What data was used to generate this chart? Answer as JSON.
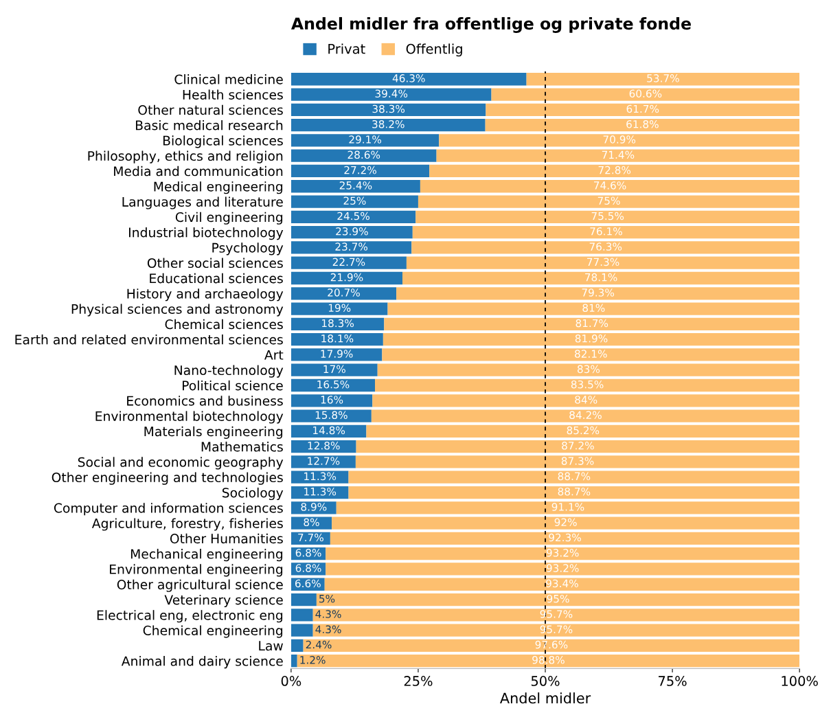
{
  "chart_data": {
    "type": "bar",
    "orientation": "horizontal",
    "stacked": true,
    "title": "Andel midler fra offentlige og private fonde",
    "xlabel": "Andel midler",
    "categories": [
      "Clinical medicine",
      "Health sciences",
      "Other natural sciences",
      "Basic medical research",
      "Biological sciences",
      "Philosophy, ethics and religion",
      "Media and communication",
      "Medical engineering",
      "Languages and literature",
      "Civil engineering",
      "Industrial biotechnology",
      "Psychology",
      "Other social sciences",
      "Educational sciences",
      "History and archaeology",
      "Physical sciences and astronomy",
      "Chemical sciences",
      "Earth and related environmental sciences",
      "Art",
      "Nano-technology",
      "Political science",
      "Economics and business",
      "Environmental biotechnology",
      "Materials engineering",
      "Mathematics",
      "Social and economic geography",
      "Other engineering and technologies",
      "Sociology",
      "Computer and information sciences",
      "Agriculture, forestry, fisheries",
      "Other Humanities",
      "Mechanical engineering",
      "Environmental engineering",
      "Other agricultural science",
      "Veterinary science",
      "Electrical eng, electronic eng",
      "Chemical engineering",
      "Law",
      "Animal and dairy science"
    ],
    "series": [
      {
        "name": "Privat",
        "color": "#2378b5",
        "values": [
          46.3,
          39.4,
          38.3,
          38.2,
          29.1,
          28.6,
          27.2,
          25.4,
          25,
          24.5,
          23.9,
          23.7,
          22.7,
          21.9,
          20.7,
          19,
          18.3,
          18.1,
          17.9,
          17,
          16.5,
          16,
          15.8,
          14.8,
          12.8,
          12.7,
          11.3,
          11.3,
          8.9,
          8,
          7.7,
          6.8,
          6.8,
          6.6,
          5,
          4.3,
          4.3,
          2.4,
          1.2
        ],
        "value_labels": [
          "46.3%",
          "39.4%",
          "38.3%",
          "38.2%",
          "29.1%",
          "28.6%",
          "27.2%",
          "25.4%",
          "25%",
          "24.5%",
          "23.9%",
          "23.7%",
          "22.7%",
          "21.9%",
          "20.7%",
          "19%",
          "18.3%",
          "18.1%",
          "17.9%",
          "17%",
          "16.5%",
          "16%",
          "15.8%",
          "14.8%",
          "12.8%",
          "12.7%",
          "11.3%",
          "11.3%",
          "8.9%",
          "8%",
          "7.7%",
          "6.8%",
          "6.8%",
          "6.6%",
          "5%",
          "4.3%",
          "4.3%",
          "2.4%",
          "1.2%"
        ]
      },
      {
        "name": "Offentlig",
        "color": "#fdbf6f",
        "values": [
          53.7,
          60.6,
          61.7,
          61.8,
          70.9,
          71.4,
          72.8,
          74.6,
          75,
          75.5,
          76.1,
          76.3,
          77.3,
          78.1,
          79.3,
          81,
          81.7,
          81.9,
          82.1,
          83,
          83.5,
          84,
          84.2,
          85.2,
          87.2,
          87.3,
          88.7,
          88.7,
          91.1,
          92,
          92.3,
          93.2,
          93.2,
          93.4,
          95,
          95.7,
          95.7,
          97.6,
          98.8
        ],
        "value_labels": [
          "53.7%",
          "60.6%",
          "61.7%",
          "61.8%",
          "70.9%",
          "71.4%",
          "72.8%",
          "74.6%",
          "75%",
          "75.5%",
          "76.1%",
          "76.3%",
          "77.3%",
          "78.1%",
          "79.3%",
          "81%",
          "81.7%",
          "81.9%",
          "82.1%",
          "83%",
          "83.5%",
          "84%",
          "84.2%",
          "85.2%",
          "87.2%",
          "87.3%",
          "88.7%",
          "88.7%",
          "91.1%",
          "92%",
          "92.3%",
          "93.2%",
          "93.2%",
          "93.4%",
          "95%",
          "95.7%",
          "95.7%",
          "97.6%",
          "98.8%"
        ]
      }
    ],
    "xlim": [
      0,
      100
    ],
    "xticks": [
      {
        "value": 0,
        "label": "0%"
      },
      {
        "value": 25,
        "label": "25%"
      },
      {
        "value": 50,
        "label": "50%"
      },
      {
        "value": 75,
        "label": "75%"
      },
      {
        "value": 100,
        "label": "100%"
      }
    ],
    "ref_lines": [
      {
        "axis": "x",
        "value": 50,
        "color": "#000000",
        "line_style": "dashed"
      }
    ],
    "legend": "top left",
    "grid": false
  }
}
